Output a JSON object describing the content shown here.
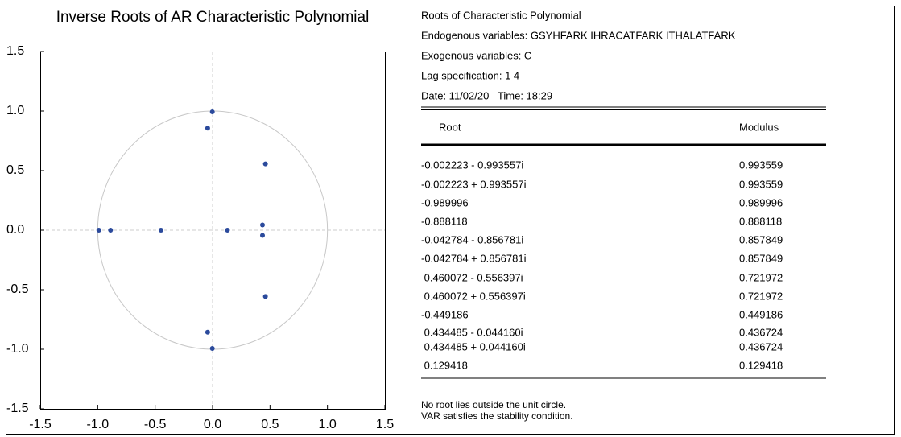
{
  "chart_data": {
    "type": "scatter",
    "title": "Inverse Roots of AR Characteristic Polynomial",
    "x": [
      -0.002223,
      -0.002223,
      -0.989996,
      -0.888118,
      -0.042784,
      -0.042784,
      0.460072,
      0.460072,
      -0.449186,
      0.434485,
      0.434485,
      0.129418
    ],
    "values": [
      -0.993557,
      0.993557,
      0,
      0,
      -0.856781,
      0.856781,
      -0.556397,
      0.556397,
      0,
      -0.04416,
      0.04416,
      0
    ],
    "color": "#2b4a9c",
    "xlim": [
      -1.5,
      1.5
    ],
    "ylim": [
      -1.5,
      1.5
    ],
    "xticks": [
      -1.5,
      {
        "value": -1,
        "label": "-1.0"
      },
      -0.5,
      {
        "value": 0,
        "label": "0.0"
      },
      0.5,
      {
        "value": 1,
        "label": "1.0"
      },
      1.5
    ],
    "yticks": [
      -1.5,
      {
        "value": -1,
        "label": "-1.0"
      },
      -0.5,
      {
        "value": 0,
        "label": "0.0"
      },
      0.5,
      {
        "value": 1,
        "label": "1.0"
      },
      1.5
    ],
    "reference_circle": {
      "radius": 1,
      "color": "#c8c8c8"
    }
  },
  "info": [
    "Roots of Characteristic Polynomial",
    "Endogenous variables: GSYHFARK IHRACATFARK ITHALATFARK",
    "Exogenous variables: C",
    "Lag specification: 1 4",
    "Date: 11/02/20   Time: 18:29"
  ],
  "table": {
    "header": [
      "Root",
      "Modulus"
    ],
    "rows": [
      [
        "-0.002223 - 0.993557i",
        "0.993559"
      ],
      [
        "-0.002223 + 0.993557i",
        "0.993559"
      ],
      [
        "-0.989996",
        "0.989996"
      ],
      [
        "-0.888118",
        "0.888118"
      ],
      [
        "-0.042784 - 0.856781i",
        "0.857849"
      ],
      [
        "-0.042784 + 0.856781i",
        "0.857849"
      ],
      [
        " 0.460072 - 0.556397i",
        "0.721972"
      ],
      [
        " 0.460072 + 0.556397i",
        "0.721972"
      ],
      [
        "-0.449186",
        "0.449186"
      ],
      [
        " 0.434485 - 0.044160i",
        "0.436724"
      ],
      [
        " 0.434485 + 0.044160i",
        "0.436724"
      ],
      [
        " 0.129418",
        "0.129418"
      ]
    ]
  },
  "notes": [
    "No root lies outside the unit circle.",
    "VAR satisfies the stability condition."
  ]
}
